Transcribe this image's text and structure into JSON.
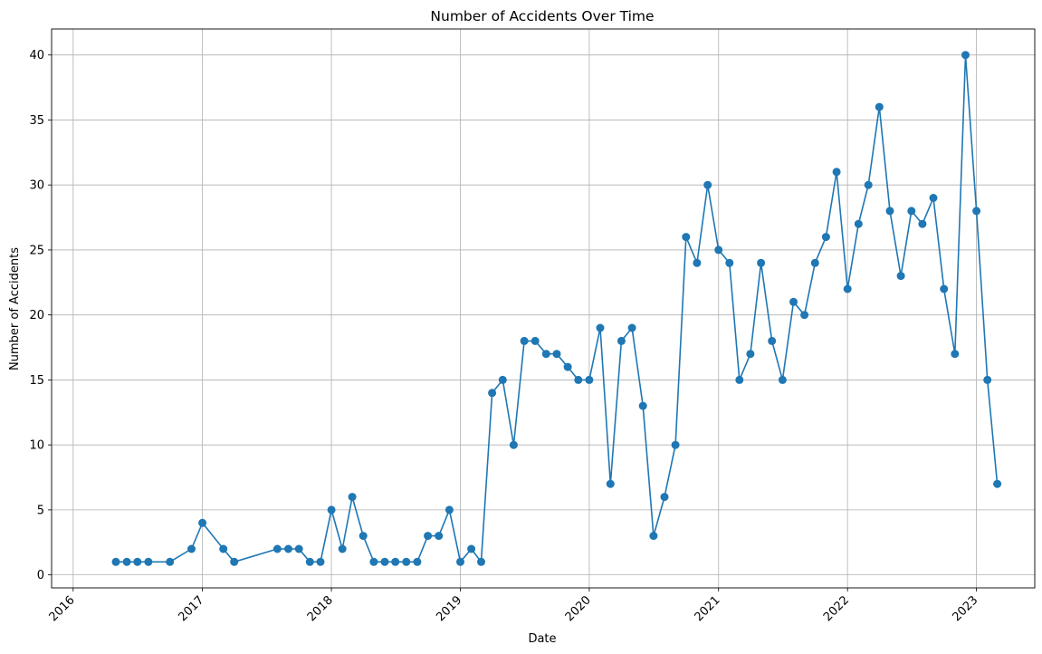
{
  "chart_data": {
    "type": "line",
    "title": "Number of Accidents Over Time",
    "xlabel": "Date",
    "ylabel": "Number of Accidents",
    "marker": "circle",
    "grid": true,
    "color": "#1f77b4",
    "xlim": [
      "2015-11-01",
      "2023-06-15"
    ],
    "ylim": [
      -1,
      42
    ],
    "x_ticks": [
      "2016",
      "2017",
      "2018",
      "2019",
      "2020",
      "2021",
      "2022",
      "2023"
    ],
    "y_ticks": [
      0,
      5,
      10,
      15,
      20,
      25,
      30,
      35,
      40
    ],
    "series": [
      {
        "x": [
          "2016-05",
          "2016-06",
          "2016-07",
          "2016-08",
          "2016-10",
          "2016-12",
          "2017-01",
          "2017-03",
          "2017-04",
          "2017-08",
          "2017-09",
          "2017-10",
          "2017-11",
          "2017-12",
          "2018-01",
          "2018-02",
          "2018-03",
          "2018-04",
          "2018-05",
          "2018-06",
          "2018-07",
          "2018-08",
          "2018-09",
          "2018-10",
          "2018-11",
          "2018-12",
          "2019-01",
          "2019-02",
          "2019-03",
          "2019-04",
          "2019-05",
          "2019-06",
          "2019-07",
          "2019-08",
          "2019-09",
          "2019-10",
          "2019-11",
          "2019-12",
          "2020-01",
          "2020-02",
          "2020-03",
          "2020-04",
          "2020-05",
          "2020-06",
          "2020-07",
          "2020-08",
          "2020-09",
          "2020-10",
          "2020-11",
          "2020-12",
          "2021-01",
          "2021-02",
          "2021-03",
          "2021-04",
          "2021-05",
          "2021-06",
          "2021-07",
          "2021-08",
          "2021-09",
          "2021-10",
          "2021-11",
          "2021-12",
          "2022-01",
          "2022-02",
          "2022-03",
          "2022-04",
          "2022-05",
          "2022-06",
          "2022-07",
          "2022-08",
          "2022-09",
          "2022-10",
          "2022-11",
          "2022-12",
          "2023-01",
          "2023-02",
          "2023-03"
        ],
        "y": [
          1,
          1,
          1,
          1,
          1,
          2,
          4,
          2,
          1,
          2,
          2,
          2,
          1,
          1,
          5,
          2,
          6,
          3,
          1,
          1,
          1,
          1,
          1,
          3,
          3,
          5,
          1,
          2,
          1,
          14,
          15,
          10,
          18,
          18,
          17,
          17,
          16,
          15,
          15,
          19,
          7,
          18,
          19,
          13,
          3,
          6,
          10,
          26,
          24,
          30,
          25,
          24,
          15,
          17,
          24,
          18,
          15,
          21,
          20,
          24,
          26,
          31,
          22,
          27,
          30,
          36,
          28,
          23,
          28,
          27,
          29,
          22,
          17,
          40,
          28,
          15,
          7
        ]
      }
    ]
  }
}
